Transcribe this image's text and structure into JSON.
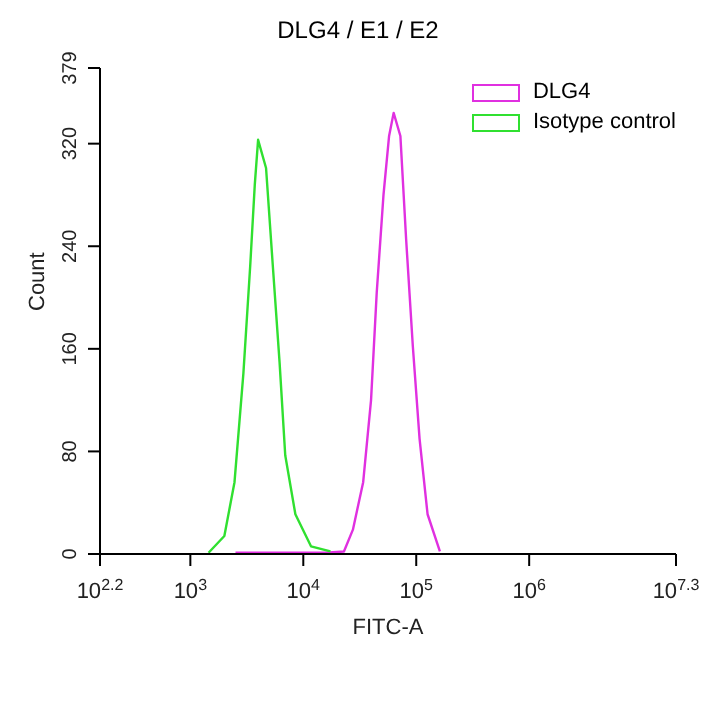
{
  "chart_data": {
    "type": "line",
    "title": "DLG4 / E1 / E2",
    "xlabel": "FITC-A",
    "ylabel": "Count",
    "log": "x",
    "legend": "top right",
    "marker": "none",
    "line_style": "solid",
    "xlim": [
      158.5,
      19952623
    ],
    "xticks": [
      {
        "value": 158.5,
        "label": "10$^{2.2}$"
      },
      {
        "value": 1000,
        "label": "10$^{3}$"
      },
      {
        "value": 10000,
        "label": "10$^{4}$"
      },
      {
        "value": 100000,
        "label": "10$^{5}$"
      },
      {
        "value": 1000000,
        "label": "10$^{6}$"
      },
      {
        "value": 19952623,
        "label": "10$^{7.3}$"
      }
    ],
    "ylim": [
      0,
      379
    ],
    "yticks": [
      0,
      80,
      160,
      240,
      320,
      379
    ],
    "series": [
      {
        "name": "DLG4",
        "color": "#e030e0",
        "x": [
          2510,
          15800,
          22900,
          27500,
          33900,
          39800,
          44700,
          51300,
          57500,
          63100,
          72400,
          81300,
          93300,
          107000,
          126000,
          162000
        ],
        "values": [
          1,
          1,
          2,
          19,
          56,
          120,
          204,
          280,
          326,
          344,
          326,
          246,
          162,
          90,
          31,
          2
        ]
      },
      {
        "name": "Isotype control",
        "color": "#30e030",
        "x": [
          1450,
          2000,
          2460,
          2950,
          3390,
          3720,
          3980,
          4680,
          5370,
          6170,
          6920,
          8510,
          11700,
          17400
        ],
        "values": [
          1,
          14,
          56,
          141,
          225,
          288,
          323,
          301,
          225,
          149,
          77,
          31,
          6,
          2
        ]
      }
    ]
  }
}
